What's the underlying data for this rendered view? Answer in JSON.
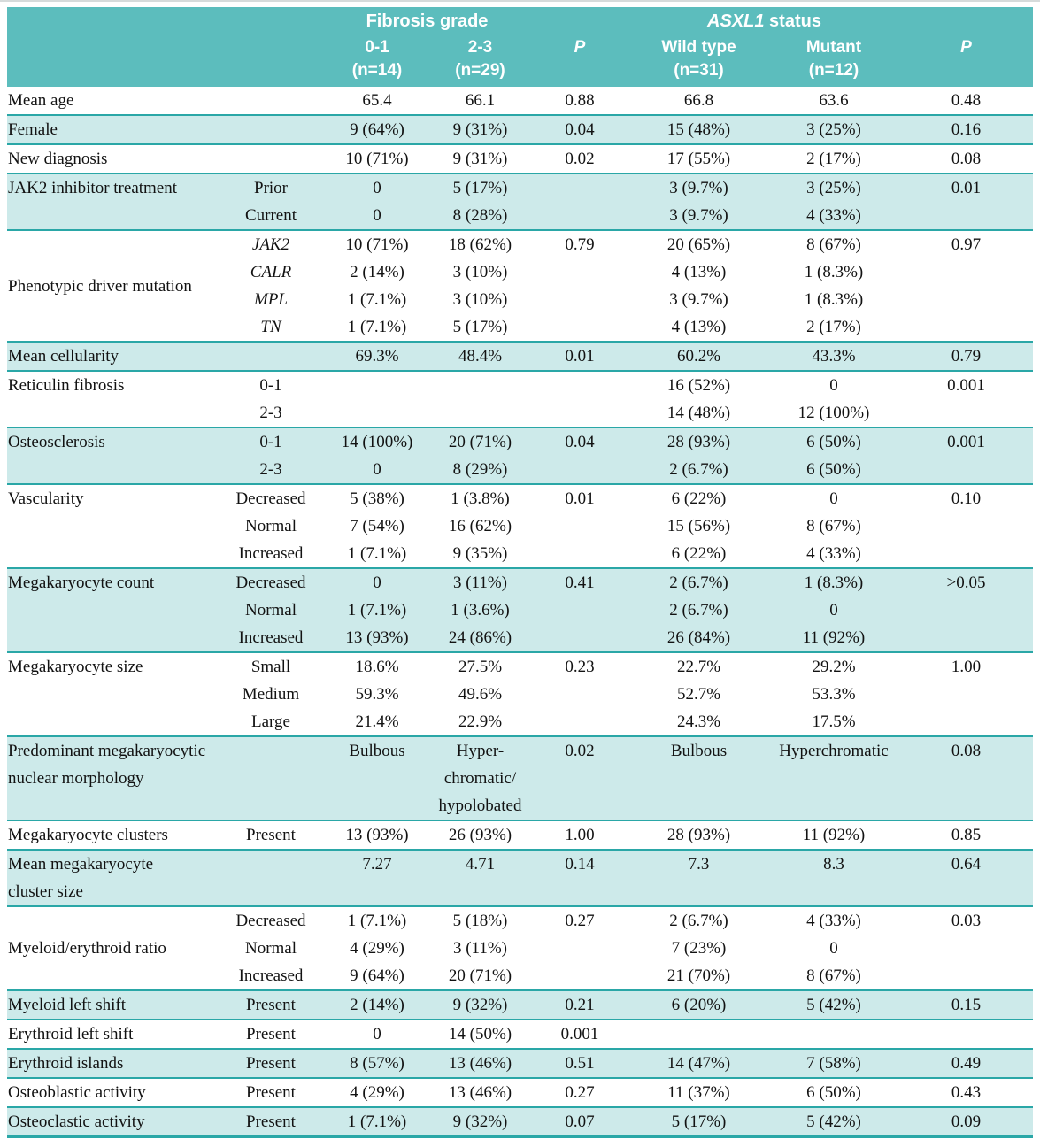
{
  "colors": {
    "header_teal": "#5cbdbd",
    "band_teal": "#cdeaea",
    "rule_teal": "#2aa7a7"
  },
  "header": {
    "fibrosis_group": "Fibrosis grade",
    "asxl1_group_italic": "ASXL1",
    "asxl1_group_rest": " status",
    "cols": [
      {
        "text": "0-1\n(n=14)"
      },
      {
        "text": "2-3\n(n=29)"
      },
      {
        "text": "P",
        "italic": true
      },
      {
        "text": "Wild type\n(n=31)"
      },
      {
        "text": "Mutant\n(n=12)"
      },
      {
        "text": "P",
        "italic": true
      }
    ]
  },
  "groups": [
    {
      "shade": false,
      "label": "Mean age",
      "rows": [
        {
          "sub": "",
          "cells": [
            "65.4",
            "66.1",
            "0.88",
            "66.8",
            "63.6",
            "0.48"
          ]
        }
      ]
    },
    {
      "shade": true,
      "label": "Female",
      "rows": [
        {
          "sub": "",
          "cells": [
            "9 (64%)",
            "9 (31%)",
            "0.04",
            "15 (48%)",
            "3 (25%)",
            "0.16"
          ]
        }
      ]
    },
    {
      "shade": false,
      "label": "New diagnosis",
      "rows": [
        {
          "sub": "",
          "cells": [
            "10 (71%)",
            "9 (31%)",
            "0.02",
            "17 (55%)",
            "2 (17%)",
            "0.08"
          ]
        }
      ]
    },
    {
      "shade": true,
      "label": "JAK2 inhibitor treatment",
      "rows": [
        {
          "sub": "Prior",
          "cells": [
            "0",
            "5 (17%)",
            "",
            "3 (9.7%)",
            "3 (25%)",
            "0.01"
          ]
        },
        {
          "sub": "Current",
          "cells": [
            "0",
            "8 (28%)",
            "",
            "3 (9.7%)",
            "4 (33%)",
            ""
          ]
        }
      ]
    },
    {
      "shade": false,
      "label": "Phenotypic driver mutation",
      "label_align": "middle",
      "rows": [
        {
          "sub": "JAK2",
          "sub_italic": true,
          "cells": [
            "10 (71%)",
            "18 (62%)",
            "0.79",
            "20 (65%)",
            "8 (67%)",
            "0.97"
          ]
        },
        {
          "sub": "CALR",
          "sub_italic": true,
          "cells": [
            "2 (14%)",
            "3 (10%)",
            "",
            "4 (13%)",
            "1 (8.3%)",
            ""
          ]
        },
        {
          "sub": "MPL",
          "sub_italic": true,
          "cells": [
            "1 (7.1%)",
            "3 (10%)",
            "",
            "3 (9.7%)",
            "1 (8.3%)",
            ""
          ]
        },
        {
          "sub": "TN",
          "sub_italic": true,
          "cells": [
            "1 (7.1%)",
            "5 (17%)",
            "",
            "4 (13%)",
            "2 (17%)",
            ""
          ]
        }
      ]
    },
    {
      "shade": true,
      "label": "Mean cellularity",
      "rows": [
        {
          "sub": "",
          "cells": [
            "69.3%",
            "48.4%",
            "0.01",
            "60.2%",
            "43.3%",
            "0.79"
          ]
        }
      ]
    },
    {
      "shade": false,
      "label": "Reticulin fibrosis",
      "rows": [
        {
          "sub": "0-1",
          "cells": [
            "",
            "",
            "",
            "16 (52%)",
            "0",
            "0.001"
          ]
        },
        {
          "sub": "2-3",
          "cells": [
            "",
            "",
            "",
            "14 (48%)",
            "12 (100%)",
            ""
          ]
        }
      ]
    },
    {
      "shade": true,
      "label": "Osteosclerosis",
      "rows": [
        {
          "sub": "0-1",
          "cells": [
            "14 (100%)",
            "20 (71%)",
            "0.04",
            "28 (93%)",
            "6 (50%)",
            "0.001"
          ]
        },
        {
          "sub": "2-3",
          "cells": [
            "0",
            "8 (29%)",
            "",
            "2 (6.7%)",
            "6 (50%)",
            ""
          ]
        }
      ]
    },
    {
      "shade": false,
      "label": "Vascularity",
      "rows": [
        {
          "sub": "Decreased",
          "cells": [
            "5 (38%)",
            "1 (3.8%)",
            "0.01",
            "6 (22%)",
            "0",
            "0.10"
          ]
        },
        {
          "sub": "Normal",
          "cells": [
            "7 (54%)",
            "16 (62%)",
            "",
            "15 (56%)",
            "8 (67%)",
            ""
          ]
        },
        {
          "sub": "Increased",
          "cells": [
            "1 (7.1%)",
            "9 (35%)",
            "",
            "6 (22%)",
            "4 (33%)",
            ""
          ]
        }
      ]
    },
    {
      "shade": true,
      "label": "Megakaryocyte count",
      "rows": [
        {
          "sub": "Decreased",
          "cells": [
            "0",
            "3 (11%)",
            "0.41",
            "2 (6.7%)",
            "1 (8.3%)",
            ">0.05"
          ]
        },
        {
          "sub": "Normal",
          "cells": [
            "1 (7.1%)",
            "1 (3.6%)",
            "",
            "2 (6.7%)",
            "0",
            ""
          ]
        },
        {
          "sub": "Increased",
          "cells": [
            "13 (93%)",
            "24 (86%)",
            "",
            "26 (84%)",
            "11 (92%)",
            ""
          ]
        }
      ]
    },
    {
      "shade": false,
      "label": "Megakaryocyte size",
      "rows": [
        {
          "sub": "Small",
          "cells": [
            "18.6%",
            "27.5%",
            "0.23",
            "22.7%",
            "29.2%",
            "1.00"
          ]
        },
        {
          "sub": "Medium",
          "cells": [
            "59.3%",
            "49.6%",
            "",
            "52.7%",
            "53.3%",
            ""
          ]
        },
        {
          "sub": "Large",
          "cells": [
            "21.4%",
            "22.9%",
            "",
            "24.3%",
            "17.5%",
            ""
          ]
        }
      ]
    },
    {
      "shade": true,
      "label": "Predominant megakaryocytic\nnuclear morphology",
      "rows": [
        {
          "sub": "",
          "cells": [
            "Bulbous",
            "Hyper-\nchromatic/\nhypolobated",
            "0.02",
            "Bulbous",
            "Hyperchromatic",
            "0.08"
          ]
        }
      ]
    },
    {
      "shade": false,
      "label": "Megakaryocyte clusters",
      "rows": [
        {
          "sub": "Present",
          "cells": [
            "13 (93%)",
            "26 (93%)",
            "1.00",
            "28 (93%)",
            "11 (92%)",
            "0.85"
          ]
        }
      ]
    },
    {
      "shade": true,
      "label": "Mean megakaryocyte\ncluster size",
      "rows": [
        {
          "sub": "",
          "cells": [
            "7.27",
            "4.71",
            "0.14",
            "7.3",
            "8.3",
            "0.64"
          ]
        }
      ]
    },
    {
      "shade": false,
      "label": "Myeloid/erythroid ratio",
      "label_align": "middle",
      "rows": [
        {
          "sub": "Decreased",
          "cells": [
            "1 (7.1%)",
            "5 (18%)",
            "0.27",
            "2 (6.7%)",
            "4 (33%)",
            "0.03"
          ]
        },
        {
          "sub": "Normal",
          "cells": [
            "4 (29%)",
            "3 (11%)",
            "",
            "7 (23%)",
            "0",
            ""
          ]
        },
        {
          "sub": "Increased",
          "cells": [
            "9 (64%)",
            "20 (71%)",
            "",
            "21 (70%)",
            "8 (67%)",
            ""
          ]
        }
      ]
    },
    {
      "shade": true,
      "label": "Myeloid left shift",
      "rows": [
        {
          "sub": "Present",
          "cells": [
            "2 (14%)",
            "9 (32%)",
            "0.21",
            "6 (20%)",
            "5 (42%)",
            "0.15"
          ]
        }
      ]
    },
    {
      "shade": false,
      "label": "Erythroid left shift",
      "rows": [
        {
          "sub": "Present",
          "cells": [
            "0",
            "14 (50%)",
            "0.001",
            "",
            "",
            ""
          ]
        }
      ]
    },
    {
      "shade": true,
      "label": "Erythroid islands",
      "rows": [
        {
          "sub": "Present",
          "cells": [
            "8 (57%)",
            "13 (46%)",
            "0.51",
            "14 (47%)",
            "7 (58%)",
            "0.49"
          ]
        }
      ]
    },
    {
      "shade": false,
      "label": "Osteoblastic activity",
      "rows": [
        {
          "sub": "Present",
          "cells": [
            "4 (29%)",
            "13 (46%)",
            "0.27",
            "11 (37%)",
            "6 (50%)",
            "0.43"
          ]
        }
      ]
    },
    {
      "shade": true,
      "label": "Osteoclastic activity",
      "rows": [
        {
          "sub": "Present",
          "cells": [
            "1 (7.1%)",
            "9 (32%)",
            "0.07",
            "5 (17%)",
            "5 (42%)",
            "0.09"
          ]
        }
      ]
    }
  ]
}
